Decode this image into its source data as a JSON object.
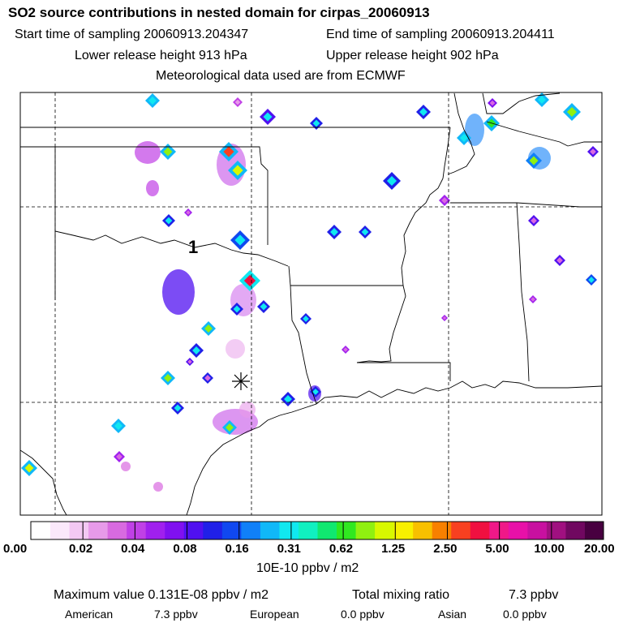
{
  "header": {
    "title": "SO2 source contributions in nested domain for cirpas_20060913",
    "start_label": "Start time of sampling 20060913.204347",
    "end_label": "End time of sampling 20060913.204411",
    "lower_label": "Lower release height  913 hPa",
    "upper_label": "Upper release height  902 hPa",
    "met_label": "Meteorological data used are from ECMWF"
  },
  "map": {
    "marker_label": "1",
    "receptor_symbol": "asterisk"
  },
  "colorbar": {
    "colors": [
      "#ffffff",
      "#fbe8fb",
      "#f3c8f3",
      "#e79ae9",
      "#d86ae0",
      "#c040e6",
      "#a020ee",
      "#8010f0",
      "#5010f0",
      "#2020e8",
      "#1048f0",
      "#1080f8",
      "#10b8f8",
      "#10e8f0",
      "#10f0c0",
      "#10e870",
      "#30e820",
      "#90f010",
      "#d8f800",
      "#f8f000",
      "#f8c000",
      "#f88000",
      "#f84020",
      "#f01040",
      "#f01888",
      "#e810a8",
      "#c810a0",
      "#a01080",
      "#700860",
      "#480040"
    ],
    "tick_labels": [
      "0.00",
      "0.02",
      "0.04",
      "0.08",
      "0.16",
      "0.31",
      "0.62",
      "1.25",
      "2.50",
      "5.00",
      "10.00",
      "20.00"
    ],
    "unit": "10E-10 ppbv / m2"
  },
  "footer": {
    "max_label": "Maximum value  0.131E-08 ppbv / m2",
    "total_label": "Total mixing ratio",
    "total_value": "7.3 ppbv",
    "american_label": "American",
    "american_value": "7.3 ppbv",
    "european_label": "European",
    "european_value": "0.0 ppbv",
    "asian_label": "Asian",
    "asian_value": "0.0 ppbv"
  },
  "chart_data": {
    "type": "heatmap",
    "title": "SO2 source contributions in nested domain for cirpas_20060913",
    "colorbar_ticks": [
      0.0,
      0.02,
      0.04,
      0.08,
      0.16,
      0.31,
      0.62,
      1.25,
      2.5,
      5.0,
      10.0,
      20.0
    ],
    "colorbar_unit": "10E-10 ppbv / m2",
    "maximum_value": "0.131E-08 ppbv / m2",
    "total_mixing_ratio_ppbv": 7.3,
    "contributions_ppbv": {
      "American": 7.3,
      "European": 0.0,
      "Asian": 0.0
    }
  }
}
